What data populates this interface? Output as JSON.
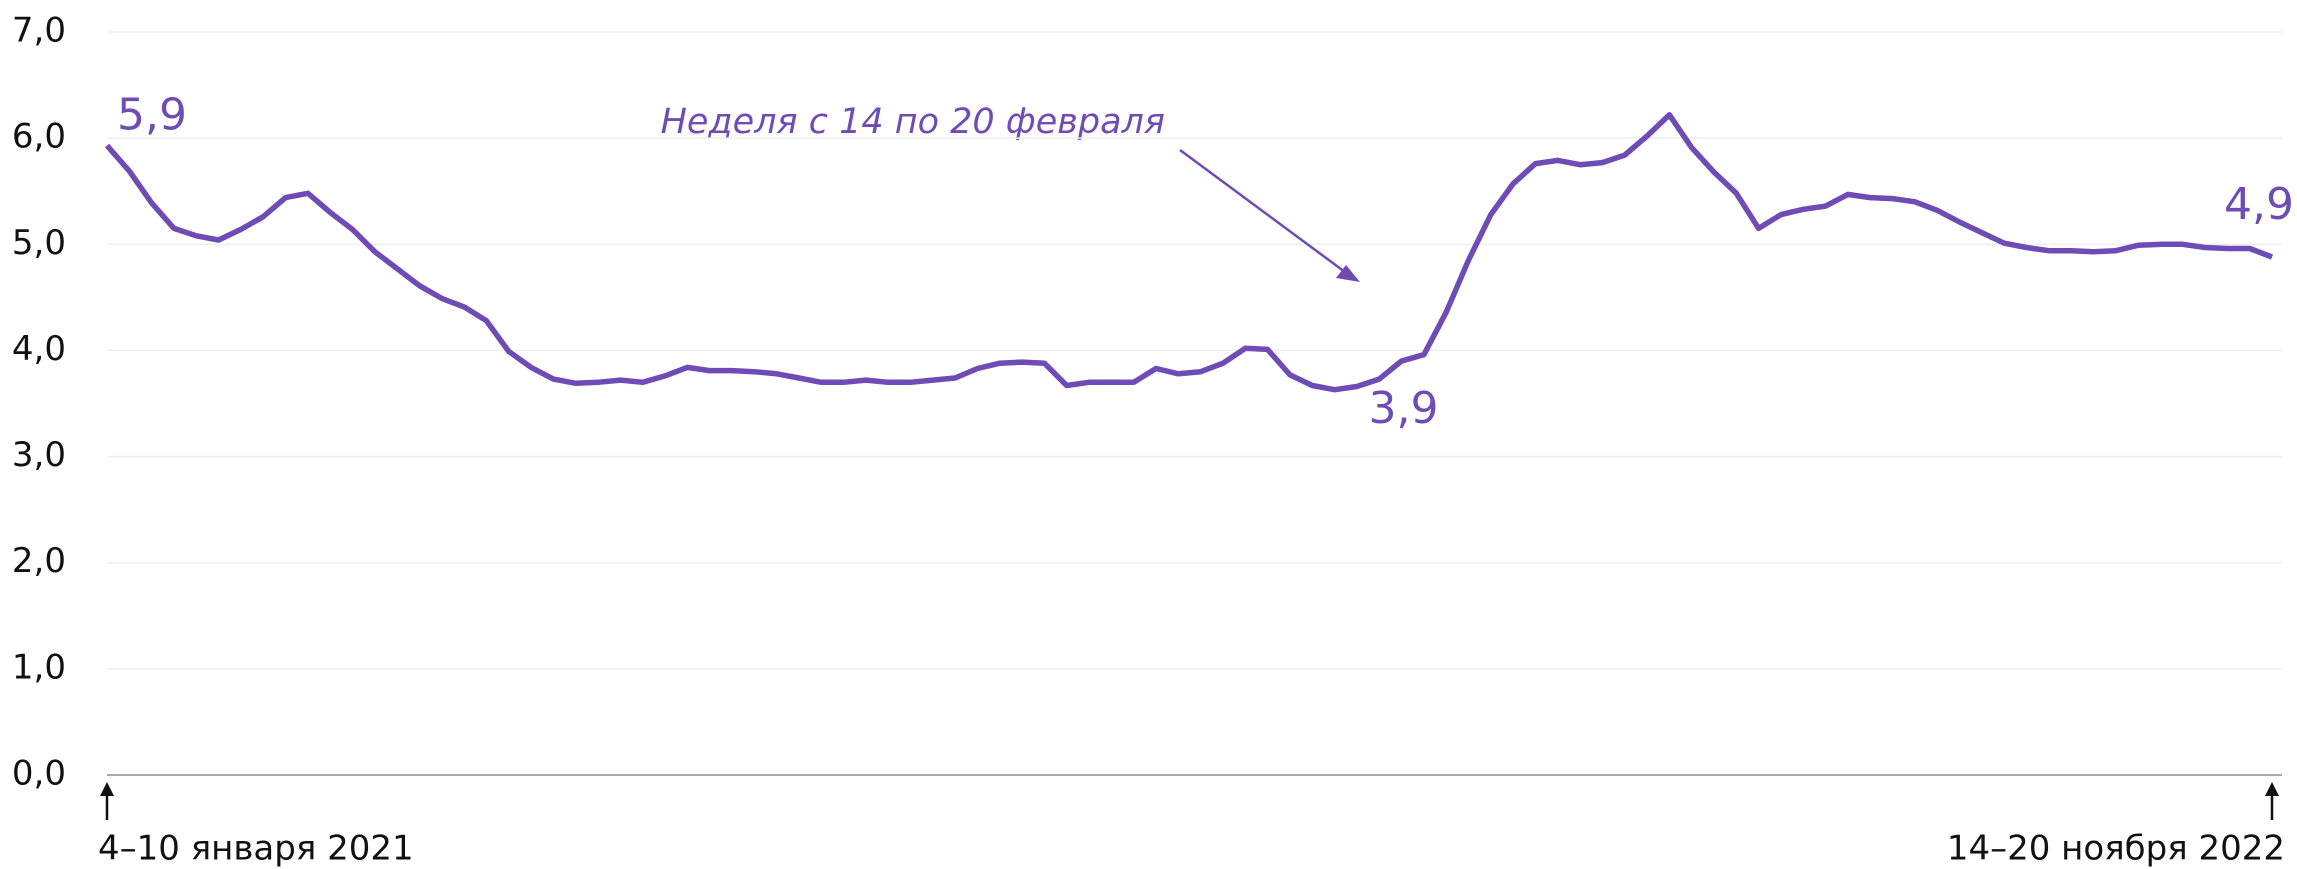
{
  "chart_data": {
    "type": "line",
    "annotation": "Неделя с 14 по 20 февраля",
    "categories": [
      "4–10 января 2021",
      null,
      null,
      null,
      null,
      null,
      null,
      null,
      null,
      null,
      null,
      null,
      null,
      null,
      null,
      null,
      null,
      null,
      null,
      null,
      null,
      null,
      null,
      null,
      null,
      null,
      null,
      null,
      null,
      null,
      null,
      null,
      null,
      null,
      null,
      null,
      null,
      null,
      null,
      null,
      null,
      null,
      null,
      null,
      null,
      null,
      null,
      null,
      null,
      null,
      null,
      null,
      null,
      null,
      null,
      null,
      null,
      null,
      null,
      null,
      null,
      null,
      null,
      null,
      null,
      null,
      null,
      null,
      null,
      null,
      null,
      null,
      null,
      null,
      null,
      null,
      null,
      null,
      null,
      null,
      null,
      null,
      null,
      null,
      null,
      null,
      null,
      null,
      null,
      null,
      null,
      null,
      null,
      null,
      null,
      null,
      null,
      "14–20 ноября 2022"
    ],
    "values": [
      5.93,
      5.69,
      5.39,
      5.15,
      5.08,
      5.04,
      5.14,
      5.26,
      5.44,
      5.48,
      5.3,
      5.14,
      4.93,
      4.77,
      4.61,
      4.49,
      4.41,
      4.28,
      3.99,
      3.84,
      3.73,
      3.69,
      3.7,
      3.72,
      3.7,
      3.76,
      3.84,
      3.81,
      3.81,
      3.8,
      3.78,
      3.74,
      3.7,
      3.7,
      3.72,
      3.7,
      3.7,
      3.72,
      3.74,
      3.83,
      3.88,
      3.89,
      3.88,
      3.67,
      3.7,
      3.7,
      3.7,
      3.83,
      3.78,
      3.8,
      3.88,
      4.02,
      4.01,
      3.77,
      3.67,
      3.63,
      3.66,
      3.73,
      3.9,
      3.96,
      4.36,
      4.85,
      5.28,
      5.57,
      5.76,
      5.79,
      5.75,
      5.77,
      5.84,
      6.02,
      6.22,
      5.91,
      5.68,
      5.48,
      5.15,
      5.28,
      5.33,
      5.36,
      5.47,
      5.44,
      5.43,
      5.4,
      5.32,
      5.21,
      5.11,
      5.01,
      4.97,
      4.94,
      4.94,
      4.93,
      4.94,
      4.99,
      5.0,
      5.0,
      4.97,
      4.96,
      4.96,
      4.88
    ],
    "value_labels": [
      "5,9",
      null,
      null,
      null,
      null,
      null,
      null,
      null,
      null,
      null,
      null,
      null,
      null,
      null,
      null,
      null,
      null,
      null,
      null,
      null,
      null,
      null,
      null,
      null,
      null,
      null,
      null,
      null,
      null,
      null,
      null,
      null,
      null,
      null,
      null,
      null,
      null,
      null,
      null,
      null,
      null,
      null,
      null,
      null,
      null,
      null,
      null,
      null,
      null,
      null,
      null,
      null,
      null,
      null,
      null,
      null,
      null,
      null,
      "3,9",
      null,
      null,
      null,
      null,
      null,
      null,
      null,
      null,
      null,
      null,
      null,
      null,
      null,
      null,
      null,
      null,
      null,
      null,
      null,
      null,
      null,
      null,
      null,
      null,
      null,
      null,
      null,
      null,
      null,
      null,
      null,
      null,
      null,
      null,
      null,
      null,
      null,
      null,
      "4,9"
    ],
    "color": "#6f4bb5",
    "ylim": [
      0,
      7
    ],
    "yticks": [
      {
        "value": 0,
        "label": "0,0"
      },
      {
        "value": 1,
        "label": "1,0"
      },
      {
        "value": 2,
        "label": "2,0"
      },
      {
        "value": 3,
        "label": "3,0"
      },
      {
        "value": 4,
        "label": "4,0"
      },
      {
        "value": 5,
        "label": "5,0"
      },
      {
        "value": 6,
        "label": "6,0"
      },
      {
        "value": 7,
        "label": "7,0"
      }
    ],
    "grid": true
  }
}
